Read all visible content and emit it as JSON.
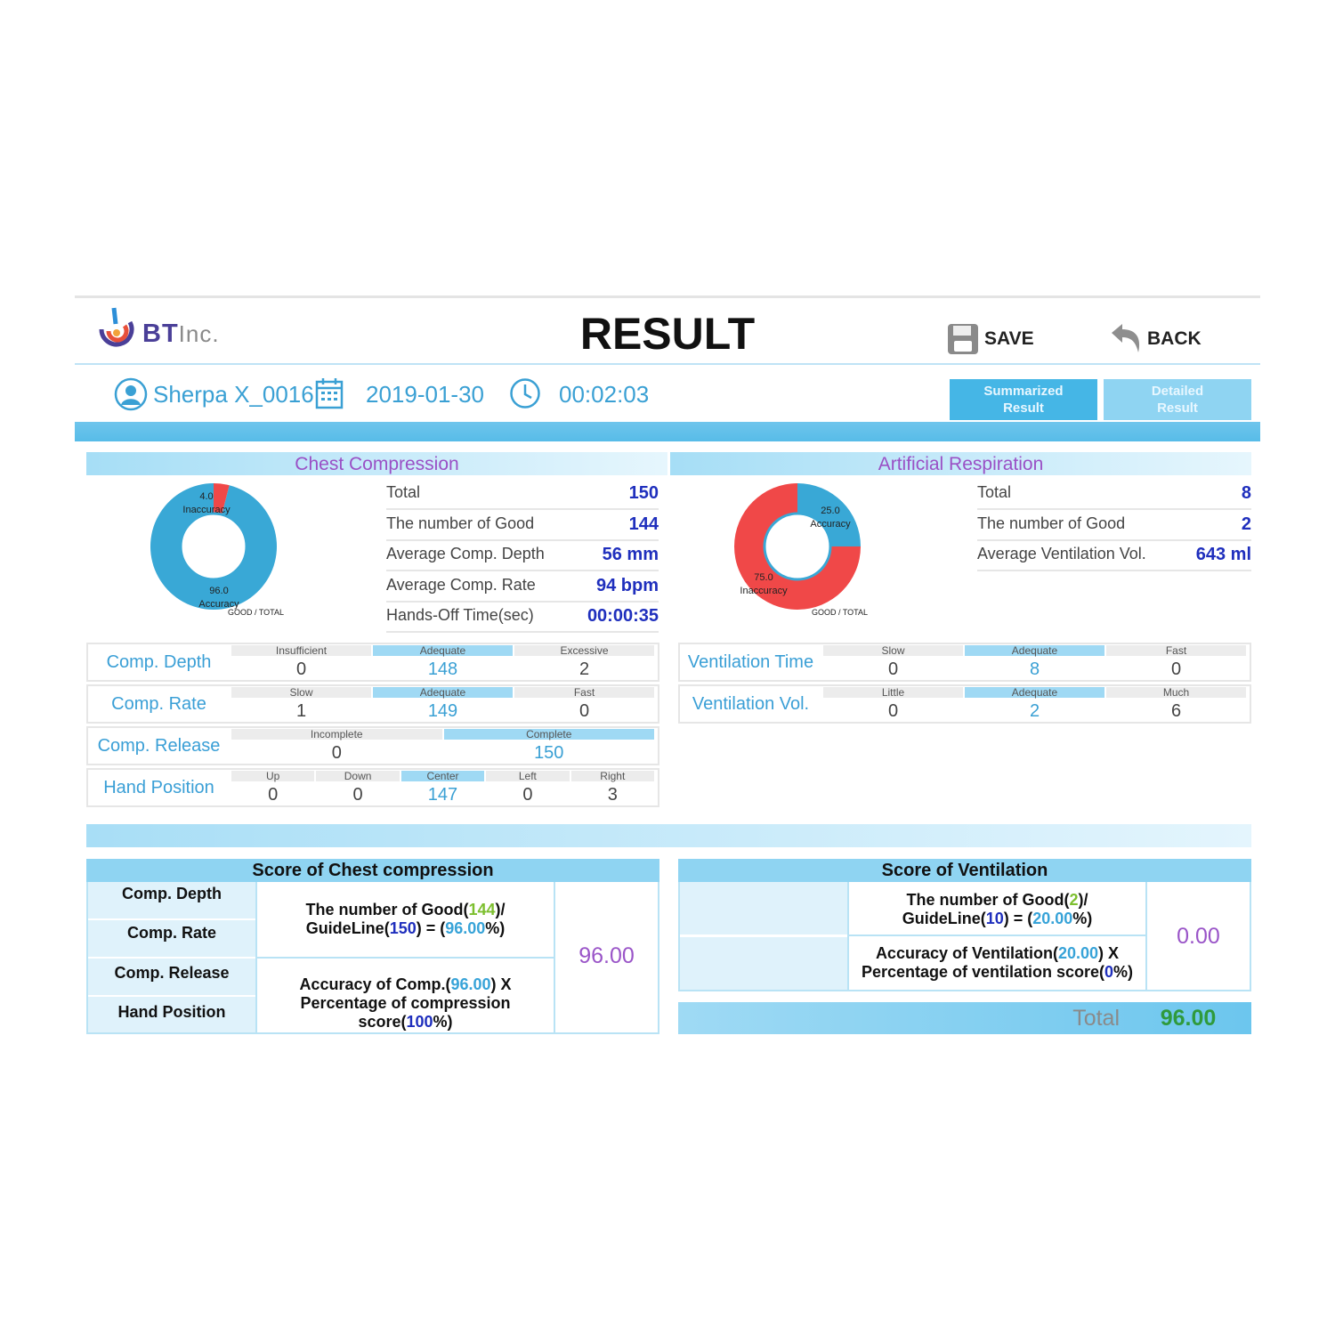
{
  "header": {
    "logo_text": "BT",
    "logo_suffix": "Inc.",
    "title": "RESULT",
    "save_label": "SAVE",
    "back_label": "BACK"
  },
  "session": {
    "user": "Sherpa X_0016",
    "date": "2019-01-30",
    "time": "00:02:03"
  },
  "tabs": [
    {
      "label_line1": "Summarized",
      "label_line2": "Result",
      "active": true
    },
    {
      "label_line1": "Detailed",
      "label_line2": "Result",
      "active": false
    }
  ],
  "chest": {
    "title": "Chest Compression",
    "donut": {
      "good": 96.0,
      "bad": 4.0,
      "good_label": "96.0",
      "good_word": "Accuracy",
      "bad_label": "4.0",
      "bad_word": "Inaccuracy",
      "legend": "GOOD / TOTAL",
      "good_color": "#39a8d6",
      "bad_color": "#f04848"
    },
    "stats": [
      {
        "label": "Total",
        "value": "150"
      },
      {
        "label": "The number of Good",
        "value": "144"
      },
      {
        "label": "Average Comp. Depth",
        "value": "56 mm"
      },
      {
        "label": "Average Comp. Rate",
        "value": "94 bpm"
      },
      {
        "label": "Hands-Off Time(sec)",
        "value": "00:00:35"
      }
    ],
    "rows": [
      {
        "label": "Comp. Depth",
        "cells": [
          {
            "h": "Insufficient",
            "v": "0",
            "on": false
          },
          {
            "h": "Adequate",
            "v": "148",
            "on": true
          },
          {
            "h": "Excessive",
            "v": "2",
            "on": false
          }
        ]
      },
      {
        "label": "Comp. Rate",
        "cells": [
          {
            "h": "Slow",
            "v": "1",
            "on": false
          },
          {
            "h": "Adequate",
            "v": "149",
            "on": true
          },
          {
            "h": "Fast",
            "v": "0",
            "on": false
          }
        ]
      },
      {
        "label": "Comp. Release",
        "cells": [
          {
            "h": "Incomplete",
            "v": "0",
            "on": false
          },
          {
            "h": "Complete",
            "v": "150",
            "on": true
          }
        ]
      },
      {
        "label": "Hand Position",
        "cells": [
          {
            "h": "Up",
            "v": "0",
            "on": false
          },
          {
            "h": "Down",
            "v": "0",
            "on": false
          },
          {
            "h": "Center",
            "v": "147",
            "on": true
          },
          {
            "h": "Left",
            "v": "0",
            "on": false
          },
          {
            "h": "Right",
            "v": "3",
            "on": false
          }
        ]
      }
    ]
  },
  "resp": {
    "title": "Artificial Respiration",
    "donut": {
      "good": 25.0,
      "bad": 75.0,
      "good_label": "25.0",
      "good_word": "Accuracy",
      "bad_label": "75.0",
      "bad_word": "Inaccuracy",
      "legend": "GOOD / TOTAL",
      "good_color": "#39a8d6",
      "bad_color": "#f04848"
    },
    "stats": [
      {
        "label": "Total",
        "value": "8"
      },
      {
        "label": "The number of Good",
        "value": "2"
      },
      {
        "label": "Average Ventilation Vol.",
        "value": "643 ml"
      }
    ],
    "rows": [
      {
        "label": "Ventilation Time",
        "cells": [
          {
            "h": "Slow",
            "v": "0",
            "on": false
          },
          {
            "h": "Adequate",
            "v": "8",
            "on": true
          },
          {
            "h": "Fast",
            "v": "0",
            "on": false
          }
        ]
      },
      {
        "label": "Ventilation Vol.",
        "cells": [
          {
            "h": "Little",
            "v": "0",
            "on": false
          },
          {
            "h": "Adequate",
            "v": "2",
            "on": true
          },
          {
            "h": "Much",
            "v": "6",
            "on": false
          }
        ]
      }
    ]
  },
  "score_chest": {
    "title": "Score of Chest compression",
    "labels": [
      "Comp. Depth",
      "Comp. Rate",
      "Comp. Release",
      "Hand Position"
    ],
    "f1_a": "The number of Good(",
    "f1_good": "144",
    "f1_b": ")/",
    "f1_c": "GuideLine(",
    "f1_guide": "150",
    "f1_d": ") = (",
    "f1_pct": "96.00",
    "f1_e": "%)",
    "f2_a": "Accuracy of Comp.(",
    "f2_acc": "96.00",
    "f2_b": ") X",
    "f2_c": "Percentage of compression score(",
    "f2_pct": "100",
    "f2_d": "%)",
    "score": "96.00"
  },
  "score_vent": {
    "title": "Score of Ventilation",
    "f1_a": "The number of Good(",
    "f1_good": "2",
    "f1_b": ")/",
    "f1_c": "GuideLine(",
    "f1_guide": "10",
    "f1_d": ") = (",
    "f1_pct": "20.00",
    "f1_e": "%)",
    "f2_a": "Accuracy of Ventilation(",
    "f2_acc": "20.00",
    "f2_b": ") X",
    "f2_c": "Percentage of ventilation score(",
    "f2_pct": "0",
    "f2_d": "%)",
    "score": "0.00"
  },
  "total": {
    "label": "Total",
    "value": "96.00"
  }
}
